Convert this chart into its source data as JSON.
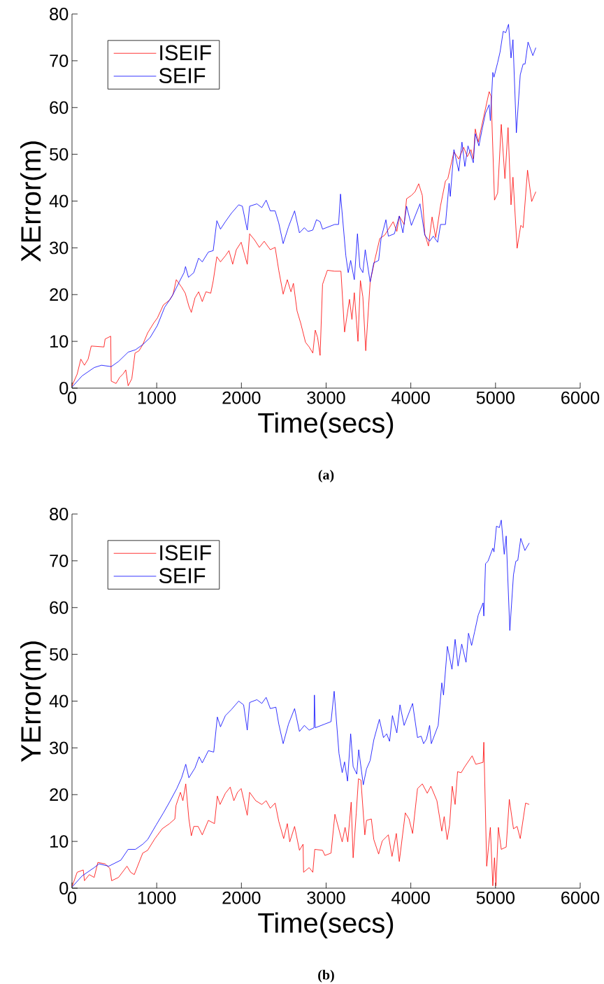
{
  "chart_data": [
    {
      "type": "line",
      "xlabel": "Time(secs)",
      "ylabel": "XError(m)",
      "annotations": [
        "(a)"
      ],
      "xlim": [
        0,
        6000
      ],
      "ylim": [
        0,
        80
      ],
      "xticks": [
        0,
        1000,
        2000,
        3000,
        4000,
        5000,
        6000
      ],
      "yticks": [
        0,
        10,
        20,
        30,
        40,
        50,
        60,
        70,
        80
      ],
      "legend": "top left",
      "series": [
        {
          "name": "ISEIF",
          "color": "#ff0000",
          "x": [
            0,
            61,
            104,
            147,
            190,
            227,
            377,
            391,
            457,
            463,
            520,
            563,
            606,
            635,
            663,
            706,
            744,
            792,
            835,
            893,
            964,
            1008,
            1079,
            1151,
            1194,
            1231,
            1294,
            1337,
            1380,
            1409,
            1452,
            1495,
            1538,
            1581,
            1638,
            1667,
            1710,
            1753,
            1811,
            1853,
            1897,
            1940,
            1997,
            2069,
            2097,
            2155,
            2212,
            2269,
            2341,
            2398,
            2441,
            2493,
            2542,
            2585,
            2614,
            2657,
            2700,
            2757,
            2800,
            2843,
            2872,
            2900,
            2929,
            2958,
            3015,
            3101,
            3175,
            3218,
            3276,
            3305,
            3333,
            3376,
            3405,
            3434,
            3468,
            3520,
            3577,
            3634,
            3691,
            3792,
            3835,
            3864,
            3921,
            3950,
            4007,
            4050,
            4093,
            4136,
            4165,
            4208,
            4251,
            4294,
            4351,
            4409,
            4437,
            4509,
            4566,
            4624,
            4667,
            4710,
            4738,
            4761,
            4796,
            4839,
            4925,
            4948,
            4988,
            5025,
            5068,
            5111,
            5148,
            5183,
            5206,
            5255,
            5298,
            5326,
            5378,
            5427,
            5476
          ],
          "values": [
            0.5,
            3,
            6.2,
            4.9,
            6.2,
            9,
            8.8,
            10.5,
            11.1,
            1.5,
            1,
            2.3,
            3.1,
            3.9,
            0.5,
            2,
            7.5,
            8,
            9.3,
            11.8,
            13.9,
            15,
            17.8,
            18.8,
            20.1,
            23.2,
            21.6,
            20.3,
            17.5,
            16.2,
            19.3,
            20.6,
            18.5,
            20.6,
            20.3,
            22.9,
            28.1,
            27,
            28.3,
            29.4,
            26.5,
            29.6,
            31.2,
            26.5,
            33,
            31.7,
            30.1,
            31.4,
            29.6,
            30.1,
            25.2,
            20.1,
            23.2,
            20.6,
            22.4,
            16.5,
            13.9,
            9.8,
            8.8,
            7.5,
            12.4,
            10.8,
            7,
            22.2,
            25.2,
            25,
            25,
            12,
            19,
            14.7,
            20.4,
            10,
            23,
            19.5,
            8,
            22.7,
            27.6,
            32,
            32.7,
            35.6,
            33.5,
            36.8,
            35,
            40.5,
            41.2,
            42,
            43.7,
            41.2,
            33,
            30.4,
            36.6,
            32.2,
            39,
            44.3,
            44.8,
            50.5,
            49,
            51.5,
            49.5,
            51,
            49,
            55.4,
            52.6,
            56.2,
            63.4,
            62.4,
            40.2,
            41.7,
            56.4,
            44.8,
            55.7,
            39.2,
            45.1,
            29.9,
            34.8,
            34.3,
            46.6,
            39.9,
            42
          ]
        },
        {
          "name": "SEIF",
          "color": "#0000ff",
          "x": [
            4,
            118,
            262,
            348,
            463,
            549,
            663,
            749,
            835,
            922,
            1008,
            1094,
            1180,
            1266,
            1323,
            1340,
            1375,
            1438,
            1495,
            1538,
            1610,
            1667,
            1710,
            1753,
            1811,
            1882,
            1968,
            2011,
            2069,
            2097,
            2183,
            2241,
            2292,
            2341,
            2398,
            2441,
            2493,
            2556,
            2628,
            2685,
            2743,
            2786,
            2843,
            2886,
            2929,
            2958,
            3101,
            3147,
            3170,
            3233,
            3261,
            3290,
            3333,
            3370,
            3399,
            3434,
            3462,
            3520,
            3563,
            3620,
            3649,
            3706,
            3735,
            3806,
            3864,
            3907,
            3950,
            4007,
            4108,
            4165,
            4222,
            4265,
            4317,
            4351,
            4409,
            4452,
            4466,
            4509,
            4566,
            4604,
            4638,
            4675,
            4738,
            4761,
            4804,
            4839,
            4882,
            4925,
            4939,
            4968,
            4982,
            5025,
            5054,
            5091,
            5120,
            5154,
            5183,
            5206,
            5246,
            5292,
            5326,
            5349,
            5384,
            5441,
            5476
          ],
          "values": [
            0.3,
            2.6,
            4.4,
            4.9,
            4.6,
            5.7,
            7.7,
            8.2,
            9.3,
            10.8,
            13.4,
            17.3,
            19.6,
            22.7,
            24.7,
            26,
            23.7,
            24.7,
            27.8,
            27,
            29.1,
            29.4,
            35.8,
            34,
            35.6,
            37.4,
            39.2,
            38.9,
            33.8,
            38.9,
            39.4,
            38.6,
            40.2,
            37.9,
            37.9,
            35.3,
            30.9,
            34.5,
            37.9,
            33.2,
            34.3,
            33.5,
            33.8,
            36,
            35.6,
            34,
            35,
            35,
            41.5,
            28.3,
            24.7,
            27.3,
            23.2,
            33,
            25.8,
            24.7,
            29.6,
            22.7,
            26.8,
            27.3,
            32,
            36,
            32.5,
            33,
            36.8,
            33.2,
            38.9,
            34.8,
            39.4,
            32.7,
            31.4,
            32.5,
            31.2,
            35,
            35,
            43.8,
            41,
            51,
            46.4,
            52.6,
            47.4,
            51.8,
            48.2,
            54.4,
            51.8,
            55.1,
            58.8,
            60.6,
            57.2,
            67.5,
            66.5,
            69.6,
            71.9,
            76.3,
            76,
            77.8,
            70.6,
            74.5,
            54.6,
            67,
            69.3,
            69.3,
            74,
            71.1,
            72.8
          ]
        }
      ]
    },
    {
      "type": "line",
      "xlabel": "Time(secs)",
      "ylabel": "YError(m)",
      "annotations": [
        "(b)"
      ],
      "xlim": [
        0,
        6000
      ],
      "ylim": [
        0,
        80
      ],
      "xticks": [
        0,
        1000,
        2000,
        3000,
        4000,
        5000,
        6000
      ],
      "yticks": [
        0,
        10,
        20,
        30,
        40,
        50,
        60,
        70,
        80
      ],
      "legend": "top left",
      "series": [
        {
          "name": "ISEIF",
          "color": "#ff0000",
          "x": [
            4,
            61,
            133,
            147,
            204,
            262,
            305,
            391,
            448,
            468,
            549,
            649,
            692,
            735,
            835,
            893,
            979,
            1065,
            1151,
            1214,
            1228,
            1280,
            1309,
            1343,
            1380,
            1409,
            1438,
            1489,
            1538,
            1610,
            1682,
            1716,
            1748,
            1811,
            1868,
            1911,
            1954,
            1997,
            2069,
            2097,
            2169,
            2241,
            2292,
            2341,
            2398,
            2441,
            2499,
            2542,
            2571,
            2628,
            2685,
            2728,
            2734,
            2800,
            2843,
            2866,
            2958,
            2986,
            3058,
            3104,
            3190,
            3224,
            3256,
            3296,
            3319,
            3356,
            3382,
            3411,
            3457,
            3477,
            3534,
            3563,
            3620,
            3663,
            3735,
            3778,
            3829,
            3864,
            3935,
            3979,
            4021,
            4079,
            4136,
            4194,
            4237,
            4308,
            4366,
            4394,
            4429,
            4458,
            4489,
            4523,
            4552,
            4595,
            4638,
            4724,
            4767,
            4853,
            4862,
            4896,
            4939,
            4968,
            4988,
            5005,
            5034,
            5068,
            5126,
            5163,
            5212,
            5255,
            5292,
            5355,
            5398
          ],
          "values": [
            0.5,
            3.4,
            3.9,
            1.6,
            2.9,
            2.3,
            5.5,
            5.2,
            4.2,
            1.6,
            2.3,
            4.7,
            3.4,
            2.9,
            7.5,
            8.1,
            10.6,
            12.7,
            13.8,
            14.8,
            17.7,
            20.5,
            18.7,
            22.3,
            14.8,
            11.2,
            13.2,
            13.2,
            11.4,
            14.5,
            13.8,
            19.7,
            17.9,
            20.3,
            21.6,
            18.7,
            20.5,
            21.3,
            15.6,
            20.5,
            18.7,
            17.9,
            18.7,
            17.1,
            18.2,
            14.3,
            10.6,
            13.8,
            9.9,
            13.2,
            8.1,
            9.4,
            3.4,
            4.4,
            3.4,
            8.3,
            8.1,
            7,
            7.5,
            15.8,
            9.9,
            13,
            9.9,
            18.4,
            6.5,
            16.1,
            23.4,
            23.1,
            11.4,
            14.5,
            14.8,
            10.4,
            7.3,
            10.1,
            11.4,
            6.8,
            11.7,
            5.7,
            16.1,
            14.8,
            11.7,
            21.3,
            22.3,
            20.3,
            21.8,
            18.7,
            12.2,
            15.3,
            10.4,
            13.5,
            21.8,
            17.9,
            24.9,
            24.7,
            26,
            28.3,
            26.5,
            26.9,
            31.2,
            4.7,
            13,
            0.5,
            6.5,
            0.5,
            13,
            8.3,
            8.8,
            19,
            12.7,
            13.2,
            10.6,
            18.2,
            17.9
          ]
        },
        {
          "name": "SEIF",
          "color": "#0000ff",
          "x": [
            4,
            118,
            262,
            319,
            434,
            577,
            663,
            749,
            835,
            893,
            993,
            1079,
            1151,
            1237,
            1294,
            1343,
            1380,
            1452,
            1501,
            1538,
            1610,
            1673,
            1716,
            1753,
            1811,
            1882,
            1968,
            2026,
            2069,
            2097,
            2183,
            2241,
            2292,
            2341,
            2407,
            2441,
            2493,
            2556,
            2628,
            2685,
            2743,
            2800,
            2857,
            2862,
            2872,
            2986,
            3058,
            3095,
            3152,
            3190,
            3218,
            3253,
            3290,
            3319,
            3362,
            3385,
            3439,
            3477,
            3520,
            3563,
            3629,
            3677,
            3715,
            3749,
            3783,
            3835,
            3872,
            3921,
            4021,
            4079,
            4122,
            4151,
            4185,
            4222,
            4242,
            4323,
            4366,
            4386,
            4432,
            4486,
            4523,
            4558,
            4601,
            4652,
            4681,
            4718,
            4753,
            4796,
            4853,
            4862,
            4882,
            4911,
            4968,
            4982,
            5011,
            5045,
            5068,
            5103,
            5126,
            5169,
            5212,
            5240,
            5263,
            5298,
            5347,
            5398
          ],
          "values": [
            0.3,
            2.6,
            4.4,
            5.2,
            4.7,
            6,
            8.3,
            8.3,
            9.4,
            10.4,
            13.5,
            16.1,
            18.4,
            21.3,
            23.6,
            26.5,
            23.6,
            25.7,
            28.1,
            26.8,
            29.4,
            29.1,
            36.6,
            34.5,
            36.9,
            38.2,
            40,
            39.2,
            33.8,
            39.7,
            40.3,
            39.5,
            40.8,
            38.4,
            38.7,
            35.1,
            30.9,
            35.1,
            38.4,
            33.5,
            34.8,
            33.8,
            34.3,
            41.3,
            34.3,
            35.1,
            35.6,
            42.1,
            28.8,
            24.7,
            27,
            22.9,
            33,
            26,
            24.4,
            29.6,
            22.1,
            25.5,
            27.3,
            31.7,
            36.1,
            32.2,
            33,
            31.4,
            36.9,
            33.2,
            39.2,
            34.8,
            39.5,
            32.2,
            32.5,
            30.9,
            31.9,
            34.8,
            30.9,
            34.8,
            43.9,
            41.3,
            51.7,
            46.8,
            53.2,
            47.5,
            52.2,
            48.3,
            54.5,
            51.9,
            54.8,
            58.4,
            61,
            58.2,
            69.4,
            69.9,
            72.7,
            71.9,
            77.4,
            77.1,
            78.7,
            71.4,
            75.3,
            55.1,
            67,
            69.9,
            70.1,
            74.8,
            72.2,
            73.8
          ]
        }
      ]
    }
  ]
}
